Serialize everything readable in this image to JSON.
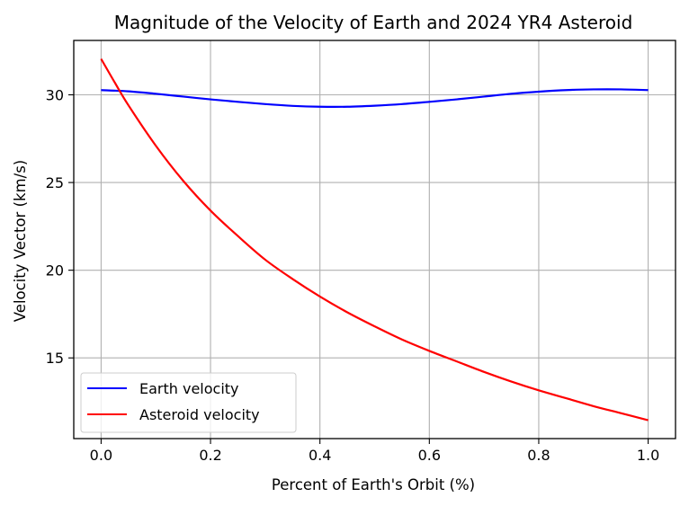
{
  "chart_data": {
    "type": "line",
    "title": "Magnitude of the Velocity of Earth and 2024 YR4 Asteroid",
    "xlabel": "Percent of Earth's Orbit (%)",
    "ylabel": "Velocity Vector (km/s)",
    "xlim": [
      -0.05,
      1.05
    ],
    "ylim": [
      10.4,
      33.1
    ],
    "xticks": [
      0.0,
      0.2,
      0.4,
      0.6,
      0.8,
      1.0
    ],
    "xtick_labels": [
      "0.0",
      "0.2",
      "0.4",
      "0.6",
      "0.8",
      "1.0"
    ],
    "yticks": [
      15,
      20,
      25,
      30
    ],
    "ytick_labels": [
      "15",
      "20",
      "25",
      "30"
    ],
    "grid": true,
    "legend_position": "lower-left",
    "series": [
      {
        "name": "Earth velocity",
        "color": "#0000ff",
        "x": [
          0.0,
          0.05,
          0.1,
          0.15,
          0.2,
          0.25,
          0.3,
          0.35,
          0.4,
          0.45,
          0.5,
          0.55,
          0.6,
          0.65,
          0.7,
          0.75,
          0.8,
          0.85,
          0.9,
          0.95,
          1.0
        ],
        "y": [
          30.27,
          30.2,
          30.06,
          29.9,
          29.74,
          29.6,
          29.47,
          29.37,
          29.32,
          29.32,
          29.38,
          29.47,
          29.6,
          29.74,
          29.9,
          30.06,
          30.18,
          30.27,
          30.31,
          30.31,
          30.27
        ]
      },
      {
        "name": "Asteroid velocity",
        "color": "#ff0000",
        "x": [
          0.0,
          0.025,
          0.05,
          0.1,
          0.15,
          0.2,
          0.25,
          0.3,
          0.35,
          0.4,
          0.45,
          0.5,
          0.55,
          0.6,
          0.65,
          0.7,
          0.75,
          0.8,
          0.85,
          0.9,
          0.95,
          1.0
        ],
        "y": [
          32.05,
          30.7,
          29.4,
          27.1,
          25.1,
          23.4,
          21.95,
          20.6,
          19.5,
          18.5,
          17.6,
          16.8,
          16.05,
          15.4,
          14.8,
          14.2,
          13.65,
          13.15,
          12.7,
          12.25,
          11.85,
          11.45
        ]
      }
    ]
  }
}
